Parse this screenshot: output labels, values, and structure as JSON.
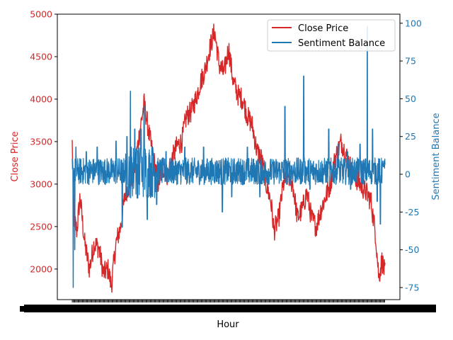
{
  "chart_data": {
    "type": "line",
    "title": "",
    "xlabel": "Hour",
    "x_tick_note": "dense overlapping hourly tick labels (unreadable)",
    "y_left": {
      "label": "Close Price",
      "color": "#d62728",
      "lim": [
        1640,
        5000
      ],
      "ticks": [
        2000,
        2500,
        3000,
        3500,
        4000,
        4500,
        5000
      ]
    },
    "y_right": {
      "label": "Sentiment Balance",
      "color": "#1f77b4",
      "lim": [
        -83,
        106
      ],
      "ticks": [
        -75,
        -50,
        -25,
        0,
        25,
        50,
        75,
        100
      ]
    },
    "legend": {
      "placement": "top-right"
    },
    "series": [
      {
        "name": "Close Price",
        "axis": "left",
        "color": "#d62728",
        "keypoints": [
          [
            0.0,
            3480
          ],
          [
            0.006,
            2600
          ],
          [
            0.015,
            2450
          ],
          [
            0.025,
            2850
          ],
          [
            0.04,
            2300
          ],
          [
            0.055,
            2000
          ],
          [
            0.07,
            2300
          ],
          [
            0.085,
            2250
          ],
          [
            0.1,
            1950
          ],
          [
            0.115,
            2000
          ],
          [
            0.125,
            1800
          ],
          [
            0.14,
            2300
          ],
          [
            0.155,
            2500
          ],
          [
            0.17,
            2900
          ],
          [
            0.185,
            3000
          ],
          [
            0.2,
            3200
          ],
          [
            0.215,
            3600
          ],
          [
            0.23,
            3950
          ],
          [
            0.245,
            3600
          ],
          [
            0.26,
            3300
          ],
          [
            0.275,
            3000
          ],
          [
            0.29,
            3200
          ],
          [
            0.305,
            3100
          ],
          [
            0.32,
            3300
          ],
          [
            0.335,
            3450
          ],
          [
            0.35,
            3500
          ],
          [
            0.365,
            3800
          ],
          [
            0.38,
            3850
          ],
          [
            0.395,
            4000
          ],
          [
            0.41,
            4200
          ],
          [
            0.425,
            4350
          ],
          [
            0.44,
            4600
          ],
          [
            0.455,
            4800
          ],
          [
            0.47,
            4400
          ],
          [
            0.485,
            4300
          ],
          [
            0.5,
            4600
          ],
          [
            0.515,
            4200
          ],
          [
            0.53,
            4050
          ],
          [
            0.545,
            4000
          ],
          [
            0.56,
            3800
          ],
          [
            0.575,
            3700
          ],
          [
            0.59,
            3400
          ],
          [
            0.605,
            3300
          ],
          [
            0.62,
            3000
          ],
          [
            0.635,
            2800
          ],
          [
            0.645,
            2450
          ],
          [
            0.66,
            2600
          ],
          [
            0.675,
            3000
          ],
          [
            0.69,
            3100
          ],
          [
            0.705,
            3000
          ],
          [
            0.72,
            2600
          ],
          [
            0.735,
            2700
          ],
          [
            0.75,
            2900
          ],
          [
            0.765,
            2600
          ],
          [
            0.78,
            2500
          ],
          [
            0.795,
            2700
          ],
          [
            0.81,
            2850
          ],
          [
            0.825,
            3000
          ],
          [
            0.84,
            3300
          ],
          [
            0.86,
            3500
          ],
          [
            0.88,
            3300
          ],
          [
            0.9,
            3100
          ],
          [
            0.92,
            3000
          ],
          [
            0.94,
            2900
          ],
          [
            0.955,
            2800
          ],
          [
            0.97,
            2400
          ],
          [
            0.98,
            1900
          ],
          [
            0.99,
            2100
          ],
          [
            1.0,
            1950
          ]
        ]
      },
      {
        "name": "Sentiment Balance",
        "axis": "right",
        "color": "#1f77b4",
        "baseline": 2,
        "spikes": [
          [
            0.003,
            -75
          ],
          [
            0.008,
            -50
          ],
          [
            0.012,
            18
          ],
          [
            0.045,
            15
          ],
          [
            0.08,
            18
          ],
          [
            0.14,
            22
          ],
          [
            0.16,
            -35
          ],
          [
            0.175,
            25
          ],
          [
            0.186,
            55
          ],
          [
            0.2,
            30
          ],
          [
            0.22,
            30
          ],
          [
            0.23,
            45
          ],
          [
            0.24,
            -30
          ],
          [
            0.27,
            -20
          ],
          [
            0.3,
            15
          ],
          [
            0.36,
            18
          ],
          [
            0.42,
            18
          ],
          [
            0.48,
            -25
          ],
          [
            0.51,
            -15
          ],
          [
            0.56,
            18
          ],
          [
            0.6,
            -15
          ],
          [
            0.64,
            8
          ],
          [
            0.68,
            45
          ],
          [
            0.74,
            65
          ],
          [
            0.76,
            -10
          ],
          [
            0.82,
            30
          ],
          [
            0.85,
            20
          ],
          [
            0.88,
            15
          ],
          [
            0.89,
            -10
          ],
          [
            0.92,
            20
          ],
          [
            0.943,
            98
          ],
          [
            0.96,
            30
          ],
          [
            0.975,
            -18
          ],
          [
            0.985,
            -33
          ],
          [
            0.995,
            5
          ]
        ]
      }
    ]
  }
}
